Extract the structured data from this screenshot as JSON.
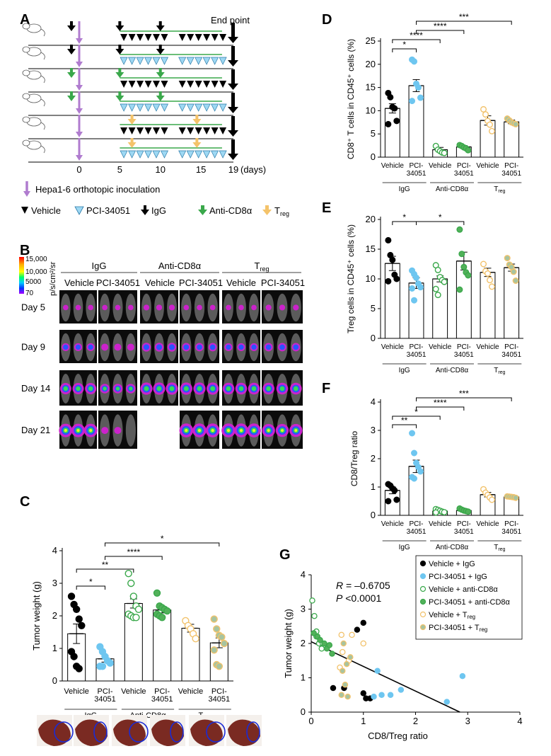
{
  "panels": {
    "A": "A",
    "B": "B",
    "C": "C",
    "D": "D",
    "E": "E",
    "F": "F",
    "G": "G"
  },
  "schedule": {
    "end_point": "End point",
    "days_label": "(days)",
    "day_ticks": [
      "0",
      "5",
      "10",
      "15",
      "19"
    ],
    "inoculation_legend": "Hepa1-6 orthotopic inoculation",
    "legend": {
      "vehicle": "Vehicle",
      "pci": "PCI-34051",
      "igg": "IgG",
      "anti_cd8": "Anti-CD8α",
      "treg": "T",
      "treg_sub": "reg"
    },
    "rows": [
      {
        "pre": "igg",
        "mid": "igg",
        "late": "igg",
        "treatment": "vehicle"
      },
      {
        "pre": "igg",
        "mid": "igg",
        "late": "igg",
        "treatment": "pci"
      },
      {
        "pre": "anti_cd8",
        "mid": "anti_cd8",
        "late": "anti_cd8",
        "treatment": "vehicle"
      },
      {
        "pre": "anti_cd8",
        "mid": "anti_cd8",
        "late": "anti_cd8",
        "treatment": "pci"
      },
      {
        "pre": "none",
        "mid": "treg",
        "late": "treg",
        "treatment": "vehicle"
      },
      {
        "pre": "none",
        "mid": "treg",
        "late": "treg",
        "treatment": "pci"
      }
    ]
  },
  "imaging": {
    "colorbar_ticks": [
      "15,000",
      "10,000",
      "5000",
      "70"
    ],
    "colorbar_label": "p/s/cm²/sr",
    "groups": [
      "IgG",
      "Anti-CD8α",
      "T"
    ],
    "group_sub": "reg",
    "sub_groups": [
      "Vehicle",
      "PCI-34051",
      "Vehicle",
      "PCI-34051",
      "Vehicle",
      "PCI-34051"
    ],
    "days": [
      "Day 5",
      "Day 9",
      "Day 14",
      "Day 21"
    ]
  },
  "groups_axis": {
    "labels": [
      "Vehicle",
      "PCI-\n34051",
      "Vehicle",
      "PCI-\n34051",
      "Vehicle",
      "PCI-\n34051"
    ],
    "lines": [
      [
        "Vehicle"
      ],
      [
        "PCI-",
        "34051"
      ],
      [
        "Vehicle"
      ],
      [
        "PCI-",
        "34051"
      ],
      [
        "Vehicle"
      ],
      [
        "PCI-",
        "34051"
      ]
    ],
    "brackets": [
      "IgG",
      "Anti-CD8α",
      "T"
    ],
    "bracket_sub": "reg"
  },
  "colors": {
    "vehicle_igg": "#000000",
    "pci_igg": "#6EC6F0",
    "vehicle_cd8": "#3AA84B",
    "pci_cd8": "#3AA84B",
    "vehicle_treg": "#F2C26B",
    "pci_treg": "#A7B89A",
    "green_line": "#3AA84B",
    "purple": "#B07CCF",
    "orange_arrow": "#F4C36A"
  },
  "chart_data": [
    {
      "id": "C",
      "type": "bar",
      "ylabel": "Tumor weight (g)",
      "yticks": [
        "0",
        "1",
        "2",
        "3",
        "4"
      ],
      "ylim": [
        0,
        4
      ],
      "categories": [
        "Vehicle IgG",
        "PCI-34051 IgG",
        "Vehicle Anti-CD8α",
        "PCI-34051 Anti-CD8α",
        "Vehicle Treg",
        "PCI-34051 Treg"
      ],
      "values": [
        1.45,
        0.68,
        2.38,
        2.18,
        1.62,
        1.17
      ],
      "sem": [
        0.3,
        0.1,
        0.14,
        0.09,
        0.12,
        0.15
      ],
      "points": [
        [
          2.6,
          2.35,
          2.2,
          1.9,
          1.7,
          0.9,
          0.75,
          0.45,
          0.38
        ],
        [
          1.05,
          0.9,
          0.75,
          0.62,
          0.55,
          0.45,
          0.45
        ],
        [
          3.3,
          3.0,
          2.6,
          2.3,
          2.2,
          2.05,
          2.0,
          1.95,
          1.95
        ],
        [
          2.7,
          2.3,
          2.25,
          2.2,
          2.15,
          2.05,
          2.0,
          1.95
        ],
        [
          1.85,
          1.7,
          1.6,
          1.45,
          1.3
        ],
        [
          1.9,
          1.6,
          1.4,
          1.35,
          1.15,
          0.95,
          0.5,
          0.45
        ]
      ],
      "significance": [
        {
          "pair": [
            0,
            1
          ],
          "label": "*"
        },
        {
          "pair": [
            0,
            2
          ],
          "label": "**"
        },
        {
          "pair": [
            1,
            3
          ],
          "label": "****"
        },
        {
          "pair": [
            1,
            5
          ],
          "label": "*"
        }
      ]
    },
    {
      "id": "D",
      "type": "bar",
      "ylabel": "CD8⁺ T cells in CD45⁺ cells (%)",
      "yticks": [
        "0",
        "5",
        "10",
        "15",
        "20",
        "25"
      ],
      "ylim": [
        0,
        25
      ],
      "categories": [
        "Vehicle IgG",
        "PCI-34051 IgG",
        "Vehicle Anti-CD8α",
        "PCI-34051 Anti-CD8α",
        "Vehicle Treg",
        "PCI-34051 Treg"
      ],
      "values": [
        10.5,
        15.4,
        1.6,
        2.2,
        7.9,
        7.6
      ],
      "sem": [
        1.0,
        1.3,
        0.5,
        0.3,
        1.0,
        0.4
      ],
      "points": [
        [
          13.8,
          12.9,
          10.8,
          10.5,
          7.8,
          7.1
        ],
        [
          21.0,
          20.6,
          15.8,
          15.0,
          12.8,
          12.1
        ],
        [
          2.4,
          1.6,
          1.3,
          1.0,
          0.9
        ],
        [
          2.6,
          2.4,
          2.1,
          1.9,
          1.5
        ],
        [
          10.3,
          9.2,
          7.8,
          7.0,
          5.6
        ],
        [
          8.3,
          7.9,
          7.5,
          7.3,
          7.1
        ]
      ],
      "significance": [
        {
          "pair": [
            0,
            1
          ],
          "label": "*"
        },
        {
          "pair": [
            0,
            2
          ],
          "label": "****"
        },
        {
          "pair": [
            1,
            3
          ],
          "label": "****"
        },
        {
          "pair": [
            1,
            5
          ],
          "label": "***"
        }
      ]
    },
    {
      "id": "E",
      "type": "bar",
      "ylabel": "Treg cells in CD45⁺ cells (%)",
      "yticks": [
        "0",
        "5",
        "10",
        "15",
        "20"
      ],
      "ylim": [
        0,
        20
      ],
      "categories": [
        "Vehicle IgG",
        "PCI-34051 IgG",
        "Vehicle Anti-CD8α",
        "PCI-34051 Anti-CD8α",
        "Vehicle Treg",
        "PCI-34051 Treg"
      ],
      "values": [
        12.6,
        9.3,
        10.0,
        13.0,
        11.1,
        11.9
      ],
      "sem": [
        1.2,
        0.9,
        0.5,
        1.5,
        0.7,
        0.6
      ],
      "points": [
        [
          16.5,
          14.0,
          13.2,
          10.7,
          10.0,
          9.6
        ],
        [
          11.4,
          10.8,
          10.2,
          9.2,
          8.6,
          8.4,
          6.4
        ],
        [
          12.3,
          11.5,
          10.3,
          9.8,
          9.5,
          8.3,
          7.3
        ],
        [
          18.3,
          14.2,
          12.0,
          11.1,
          10.6,
          8.2
        ],
        [
          12.5,
          11.3,
          10.9,
          9.8,
          8.7
        ],
        [
          13.5,
          12.4,
          12.0,
          11.2,
          9.7
        ]
      ],
      "significance": [
        {
          "pair": [
            0,
            1
          ],
          "label": "*"
        },
        {
          "pair": [
            1,
            3
          ],
          "label": "*"
        }
      ]
    },
    {
      "id": "F",
      "type": "bar",
      "ylabel": "CD8/Treg ratio",
      "yticks": [
        "0",
        "1",
        "2",
        "3",
        "4"
      ],
      "ylim": [
        0,
        4
      ],
      "categories": [
        "Vehicle IgG",
        "PCI-34051 IgG",
        "Vehicle Anti-CD8α",
        "PCI-34051 Anti-CD8α",
        "Vehicle Treg",
        "PCI-34051 Treg"
      ],
      "values": [
        0.88,
        1.73,
        0.15,
        0.17,
        0.73,
        0.65
      ],
      "sem": [
        0.12,
        0.22,
        0.03,
        0.02,
        0.08,
        0.02
      ],
      "points": [
        [
          1.1,
          1.05,
          0.95,
          0.88,
          0.55,
          0.5
        ],
        [
          2.9,
          2.2,
          1.85,
          1.7,
          1.55,
          1.35,
          1.3
        ],
        [
          0.22,
          0.19,
          0.16,
          0.13,
          0.11,
          0.1
        ],
        [
          0.24,
          0.2,
          0.17,
          0.15,
          0.13
        ],
        [
          0.92,
          0.8,
          0.72,
          0.63,
          0.55
        ],
        [
          0.67,
          0.66,
          0.65,
          0.64,
          0.62
        ]
      ],
      "significance": [
        {
          "pair": [
            0,
            1
          ],
          "label": "**"
        },
        {
          "pair": [
            0,
            2
          ],
          "label": "*"
        },
        {
          "pair": [
            1,
            3
          ],
          "label": "****"
        },
        {
          "pair": [
            1,
            5
          ],
          "label": "***"
        }
      ]
    },
    {
      "id": "G",
      "type": "scatter",
      "xlabel": "CD8/Treg ratio",
      "ylabel": "Tumor weight (g)",
      "xticks": [
        "0",
        "1",
        "2",
        "3",
        "4"
      ],
      "yticks": [
        "0",
        "1",
        "2",
        "3",
        "4"
      ],
      "xlim": [
        0,
        4
      ],
      "ylim": [
        0,
        4
      ],
      "stats": {
        "r_label": "R",
        "r_value": " = –0.6705",
        "p_label": "P",
        "p_value": " <0.0001"
      },
      "legend": [
        "Vehicle + IgG",
        "PCI-34051 + IgG",
        "Vehicle + anti-CD8α",
        "PCI-34051 + anti-CD8α",
        "Vehicle + T",
        "PCI-34051 + T"
      ],
      "legend_sub": [
        "",
        "",
        "",
        "",
        "reg",
        "reg"
      ],
      "series": [
        {
          "name": "Vehicle + IgG",
          "points": [
            [
              0.88,
              2.4
            ],
            [
              1.0,
              2.6
            ],
            [
              0.42,
              0.7
            ],
            [
              0.63,
              0.7
            ],
            [
              1.0,
              0.55
            ],
            [
              1.13,
              0.4
            ],
            [
              1.05,
              0.4
            ]
          ]
        },
        {
          "name": "PCI-34051 + IgG",
          "points": [
            [
              1.27,
              1.2
            ],
            [
              1.72,
              0.65
            ],
            [
              1.52,
              0.5
            ],
            [
              2.9,
              1.05
            ],
            [
              1.35,
              0.5
            ],
            [
              1.2,
              0.45
            ],
            [
              2.6,
              0.3
            ]
          ]
        },
        {
          "name": "Vehicle + anti-CD8α",
          "points": [
            [
              0.02,
              3.25
            ],
            [
              0.06,
              2.8
            ],
            [
              0.1,
              2.35
            ],
            [
              0.1,
              2.2
            ],
            [
              0.15,
              2.0
            ],
            [
              0.22,
              2.0
            ],
            [
              0.25,
              1.95
            ],
            [
              0.2,
              1.85
            ]
          ]
        },
        {
          "name": "PCI-34051 + anti-CD8α",
          "points": [
            [
              0.05,
              2.3
            ],
            [
              0.12,
              2.2
            ],
            [
              0.17,
              2.1
            ],
            [
              0.25,
              2.0
            ],
            [
              0.3,
              1.85
            ],
            [
              0.35,
              1.95
            ],
            [
              0.4,
              1.7
            ]
          ]
        },
        {
          "name": "Vehicle + Treg",
          "points": [
            [
              0.58,
              2.25
            ],
            [
              0.78,
              2.25
            ],
            [
              1.0,
              2.0
            ],
            [
              0.6,
              1.75
            ],
            [
              0.72,
              1.5
            ],
            [
              0.55,
              1.3
            ]
          ]
        },
        {
          "name": "PCI-34051 + Treg",
          "points": [
            [
              0.62,
              2.0
            ],
            [
              0.75,
              1.6
            ],
            [
              0.68,
              1.4
            ],
            [
              0.6,
              1.2
            ],
            [
              0.65,
              0.8
            ],
            [
              0.58,
              0.5
            ],
            [
              0.7,
              0.45
            ]
          ]
        }
      ],
      "regression": {
        "x": [
          0,
          2.85
        ],
        "y": [
          2.05,
          0
        ]
      }
    }
  ]
}
